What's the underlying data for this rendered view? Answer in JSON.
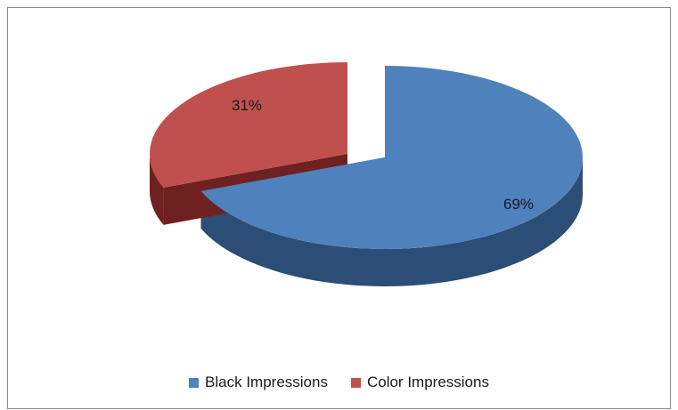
{
  "chart_data": {
    "type": "pie",
    "style": "3d-exploded",
    "categories": [
      "Black Impressions",
      "Color Impressions"
    ],
    "values": [
      69,
      31
    ],
    "data_labels": [
      "69%",
      "31%"
    ],
    "colors": [
      "#4f81bd",
      "#c0504d"
    ],
    "side_colors": [
      "#2c4d75",
      "#6e2120"
    ],
    "legend_position": "bottom"
  }
}
